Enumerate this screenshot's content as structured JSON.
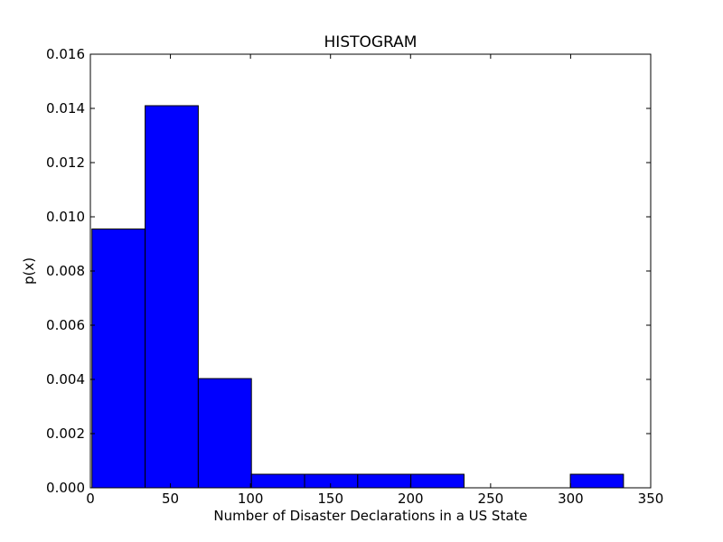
{
  "chart_data": {
    "type": "bar",
    "title": "HISTOGRAM",
    "xlabel": "Number of Disaster Declarations in a US State",
    "ylabel": "p(x)",
    "xlim": [
      0,
      350
    ],
    "ylim": [
      0,
      0.016
    ],
    "xticks": [
      "0",
      "50",
      "100",
      "150",
      "200",
      "250",
      "300",
      "350"
    ],
    "yticks": [
      "0.000",
      "0.002",
      "0.004",
      "0.006",
      "0.008",
      "0.010",
      "0.012",
      "0.014",
      "0.016"
    ],
    "bins": [
      {
        "start": 1,
        "end": 34.2,
        "value": 0.00955
      },
      {
        "start": 34.2,
        "end": 67.4,
        "value": 0.0141
      },
      {
        "start": 67.4,
        "end": 100.6,
        "value": 0.00403
      },
      {
        "start": 100.6,
        "end": 133.8,
        "value": 0.0005
      },
      {
        "start": 133.8,
        "end": 167,
        "value": 0.0005
      },
      {
        "start": 167,
        "end": 200.2,
        "value": 0.0005
      },
      {
        "start": 200.2,
        "end": 233.4,
        "value": 0.0005
      },
      {
        "start": 233.4,
        "end": 266.6,
        "value": 0
      },
      {
        "start": 266.6,
        "end": 299.8,
        "value": 0
      },
      {
        "start": 299.8,
        "end": 333,
        "value": 0.0005
      }
    ],
    "bar_color": "#0000ff",
    "edge_color": "#000000",
    "grid": false,
    "legend": "none"
  }
}
